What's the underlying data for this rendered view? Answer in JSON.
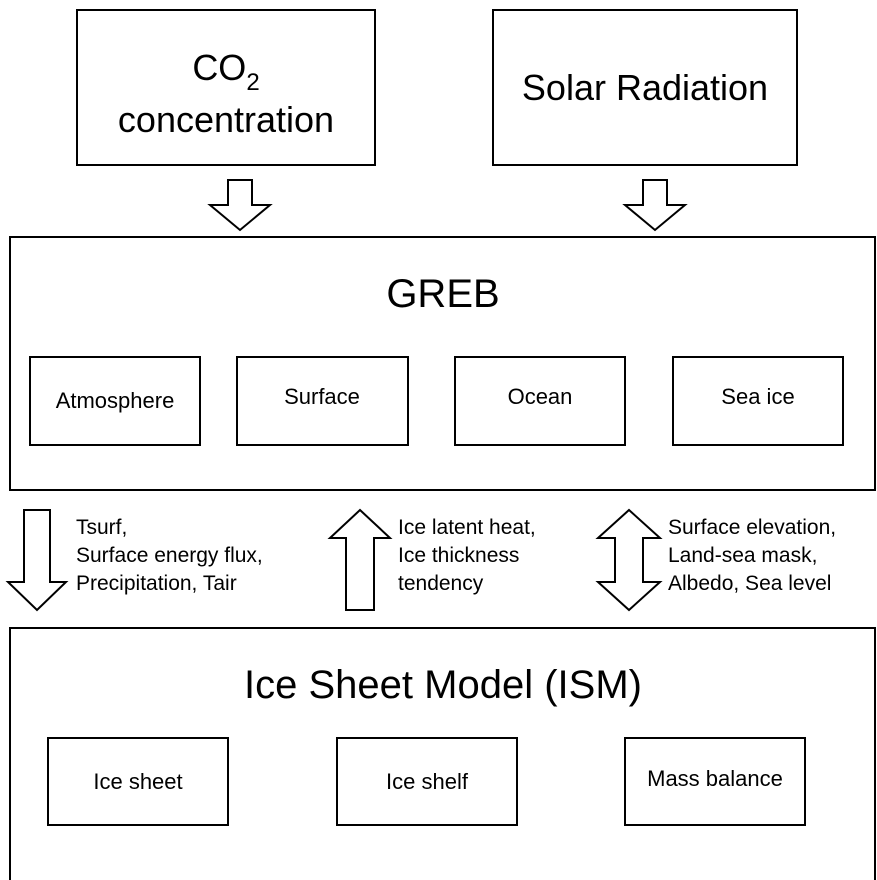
{
  "inputs": [
    {
      "label_parts": [
        "CO",
        "2",
        "concentration"
      ]
    },
    {
      "label": "Solar Radiation"
    }
  ],
  "greb": {
    "title": "GREB",
    "components": [
      "Atmosphere",
      "Surface",
      "Ocean",
      "Sea ice"
    ]
  },
  "couplings": [
    {
      "lines": [
        "Tsurf,",
        "Surface energy flux,",
        "Precipitation, Tair"
      ]
    },
    {
      "lines": [
        "Ice latent heat,",
        "Ice thickness",
        "tendency"
      ]
    },
    {
      "lines": [
        "Surface elevation,",
        "Land-sea mask,",
        "Albedo, Sea level"
      ]
    }
  ],
  "ism": {
    "title": "Ice Sheet Model (ISM)",
    "components": [
      "Ice sheet",
      "Ice shelf",
      "Mass balance"
    ]
  }
}
